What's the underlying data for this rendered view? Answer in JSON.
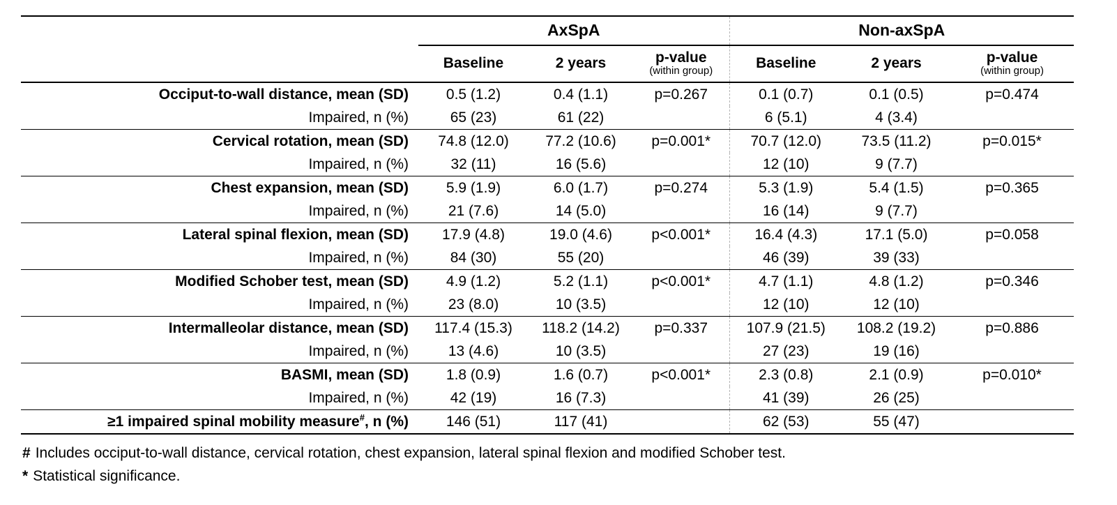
{
  "table": {
    "groups": [
      {
        "label": "AxSpA"
      },
      {
        "label": "Non-axSpA"
      }
    ],
    "columns": {
      "baseline": "Baseline",
      "two_years": "2 years",
      "p_value": "p-value",
      "p_value_note": "(within group)"
    },
    "rows": [
      {
        "label": "Occiput-to-wall distance, mean (SD)",
        "bold": true,
        "group_start": true,
        "cells": [
          "0.5 (1.2)",
          "0.4 (1.1)",
          "p=0.267",
          "0.1 (0.7)",
          "0.1 (0.5)",
          "p=0.474"
        ]
      },
      {
        "label": "Impaired, n (%)",
        "bold": false,
        "group_start": false,
        "cells": [
          "65 (23)",
          "61 (22)",
          "",
          "6 (5.1)",
          "4 (3.4)",
          ""
        ]
      },
      {
        "label": "Cervical rotation, mean (SD)",
        "bold": true,
        "group_start": true,
        "cells": [
          "74.8 (12.0)",
          "77.2 (10.6)",
          "p=0.001*",
          "70.7 (12.0)",
          "73.5 (11.2)",
          "p=0.015*"
        ]
      },
      {
        "label": "Impaired, n (%)",
        "bold": false,
        "group_start": false,
        "cells": [
          "32 (11)",
          "16 (5.6)",
          "",
          "12 (10)",
          "9 (7.7)",
          ""
        ]
      },
      {
        "label": "Chest expansion, mean (SD)",
        "bold": true,
        "group_start": true,
        "cells": [
          "5.9 (1.9)",
          "6.0 (1.7)",
          "p=0.274",
          "5.3 (1.9)",
          "5.4 (1.5)",
          "p=0.365"
        ]
      },
      {
        "label": "Impaired, n (%)",
        "bold": false,
        "group_start": false,
        "cells": [
          "21 (7.6)",
          "14 (5.0)",
          "",
          "16 (14)",
          "9 (7.7)",
          ""
        ]
      },
      {
        "label": "Lateral spinal flexion, mean (SD)",
        "bold": true,
        "group_start": true,
        "cells": [
          "17.9 (4.8)",
          "19.0 (4.6)",
          "p<0.001*",
          "16.4 (4.3)",
          "17.1 (5.0)",
          "p=0.058"
        ]
      },
      {
        "label": "Impaired, n (%)",
        "bold": false,
        "group_start": false,
        "cells": [
          "84 (30)",
          "55 (20)",
          "",
          "46 (39)",
          "39 (33)",
          ""
        ]
      },
      {
        "label": "Modified Schober test, mean (SD)",
        "bold": true,
        "group_start": true,
        "cells": [
          "4.9 (1.2)",
          "5.2 (1.1)",
          "p<0.001*",
          "4.7 (1.1)",
          "4.8 (1.2)",
          "p=0.346"
        ]
      },
      {
        "label": "Impaired, n (%)",
        "bold": false,
        "group_start": false,
        "cells": [
          "23 (8.0)",
          "10 (3.5)",
          "",
          "12 (10)",
          "12 (10)",
          ""
        ]
      },
      {
        "label": "Intermalleolar distance, mean (SD)",
        "bold": true,
        "group_start": true,
        "cells": [
          "117.4 (15.3)",
          "118.2 (14.2)",
          "p=0.337",
          "107.9 (21.5)",
          "108.2 (19.2)",
          "p=0.886"
        ]
      },
      {
        "label": "Impaired, n (%)",
        "bold": false,
        "group_start": false,
        "cells": [
          "13 (4.6)",
          "10 (3.5)",
          "",
          "27 (23)",
          "19 (16)",
          ""
        ]
      },
      {
        "label": "BASMI, mean (SD)",
        "bold": true,
        "group_start": true,
        "cells": [
          "1.8 (0.9)",
          "1.6 (0.7)",
          "p<0.001*",
          "2.3 (0.8)",
          "2.1 (0.9)",
          "p=0.010*"
        ]
      },
      {
        "label": "Impaired, n (%)",
        "bold": false,
        "group_start": false,
        "cells": [
          "42 (19)",
          "16 (7.3)",
          "",
          "41 (39)",
          "26 (25)",
          ""
        ]
      },
      {
        "label": "≥1 impaired spinal mobility measure",
        "sup": "#",
        "label_after": ", n (%)",
        "bold": true,
        "group_start": true,
        "cells": [
          "146 (51)",
          "117 (41)",
          "",
          "62 (53)",
          "55 (47)",
          ""
        ]
      }
    ],
    "footnotes": [
      {
        "marker": "#",
        "text": "Includes occiput-to-wall distance, cervical rotation, chest expansion, lateral spinal flexion and modified Schober test."
      },
      {
        "marker": "*",
        "text": "Statistical significance."
      }
    ]
  }
}
